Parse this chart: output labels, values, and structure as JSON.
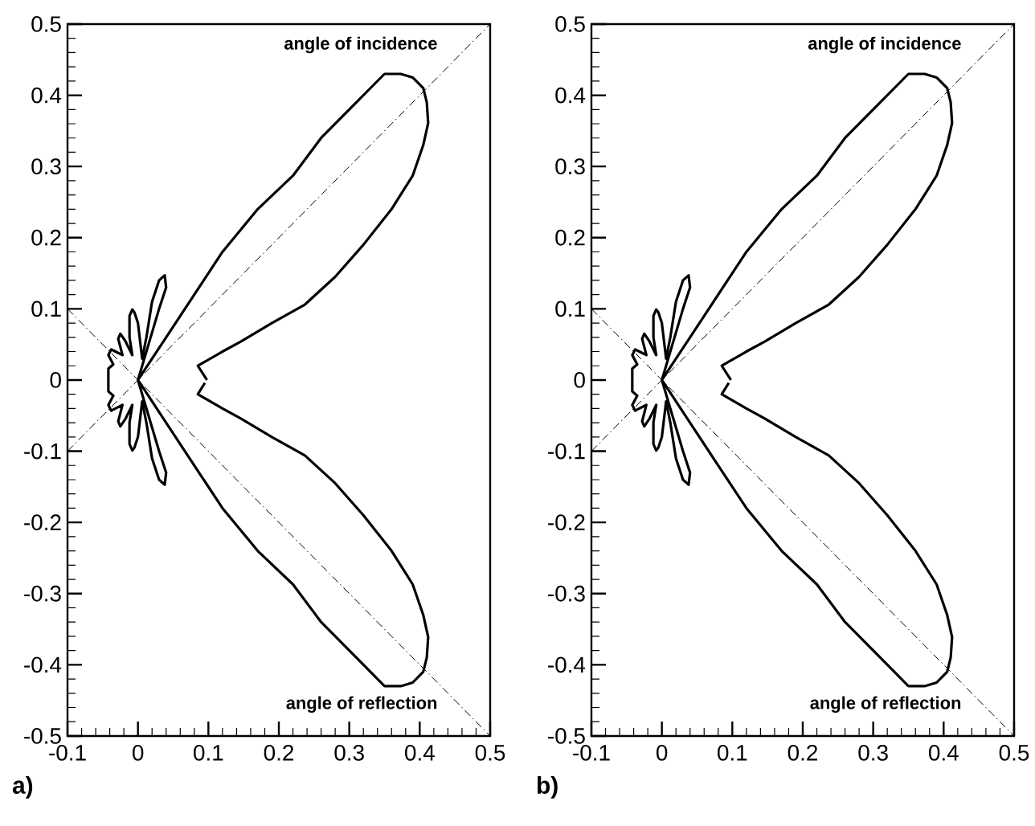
{
  "chart_data": [
    {
      "type": "line",
      "xlim": [
        -0.1,
        0.5
      ],
      "ylim": [
        -0.5,
        0.5
      ],
      "xticks": [
        -0.1,
        0,
        0.1,
        0.2,
        0.3,
        0.4,
        0.5
      ],
      "yticks": [
        -0.5,
        -0.4,
        -0.3,
        -0.2,
        -0.1,
        0,
        0.1,
        0.2,
        0.3,
        0.4,
        0.5
      ],
      "series": [
        {
          "color": "#000000",
          "line_style": "solid",
          "x": [
            0.098,
            0.085,
            0.12,
            0.146,
            0.19,
            0.237,
            0.28,
            0.32,
            0.36,
            0.39,
            0.405,
            0.412,
            0.41,
            0.405,
            0.39,
            0.373,
            0.35,
            0.33,
            0.31,
            0.26,
            0.22,
            0.17,
            0.12,
            0.08,
            0.04,
            0.01,
            0,
            0.015,
            0.03,
            0.04,
            0.038,
            0.03,
            0.02,
            0.012,
            0.006,
            0,
            -0.005,
            -0.008,
            -0.012,
            -0.012,
            -0.008,
            -0.018,
            -0.025,
            -0.028,
            -0.022,
            -0.032,
            -0.038,
            -0.042,
            -0.035,
            -0.042,
            -0.042,
            -0.035,
            -0.042,
            -0.038,
            -0.032,
            -0.022,
            -0.028,
            -0.025,
            -0.018,
            -0.008,
            -0.012,
            -0.012,
            -0.008,
            -0.005,
            0,
            0.006,
            0.012,
            0.02,
            0.03,
            0.038,
            0.04,
            0.03,
            0.015,
            0,
            0.01,
            0.04,
            0.08,
            0.12,
            0.17,
            0.22,
            0.26,
            0.31,
            0.33,
            0.35,
            0.373,
            0.39,
            0.405,
            0.41,
            0.412,
            0.405,
            0.39,
            0.36,
            0.32,
            0.28,
            0.237,
            0.19,
            0.146,
            0.12,
            0.085,
            0.095
          ],
          "values": [
            0,
            0.02,
            0.04,
            0.054,
            0.08,
            0.106,
            0.145,
            0.19,
            0.24,
            0.287,
            0.33,
            0.361,
            0.39,
            0.41,
            0.425,
            0.43,
            0.43,
            0.41,
            0.39,
            0.34,
            0.287,
            0.24,
            0.18,
            0.12,
            0.06,
            0.015,
            0,
            0.05,
            0.1,
            0.13,
            0.147,
            0.14,
            0.11,
            0.06,
            0.03,
            0.08,
            0.095,
            0.099,
            0.09,
            0.06,
            0.035,
            0.055,
            0.065,
            0.058,
            0.035,
            0.04,
            0.043,
            0.035,
            0.022,
            0.016,
            -0.016,
            -0.022,
            -0.035,
            -0.043,
            -0.04,
            -0.035,
            -0.058,
            -0.065,
            -0.055,
            -0.035,
            -0.06,
            -0.09,
            -0.099,
            -0.095,
            -0.08,
            -0.03,
            -0.06,
            -0.11,
            -0.14,
            -0.147,
            -0.13,
            -0.1,
            -0.05,
            0,
            -0.015,
            -0.06,
            -0.12,
            -0.18,
            -0.24,
            -0.287,
            -0.34,
            -0.39,
            -0.41,
            -0.43,
            -0.43,
            -0.425,
            -0.41,
            -0.39,
            -0.361,
            -0.33,
            -0.287,
            -0.24,
            -0.19,
            -0.145,
            -0.106,
            -0.08,
            -0.054,
            -0.04,
            -0.02,
            -0.004
          ]
        },
        {
          "color": "#000000",
          "line_style": "dashdot",
          "x": [
            -0.1,
            0.5
          ],
          "values": [
            -0.1,
            0.5
          ]
        },
        {
          "color": "#000000",
          "line_style": "dashdot",
          "x": [
            -0.1,
            0.5
          ],
          "values": [
            0.1,
            -0.5
          ]
        }
      ],
      "annotations": [
        "angle of incidence",
        "angle of reflection",
        "a)"
      ]
    },
    {
      "type": "line",
      "xlim": [
        -0.1,
        0.5
      ],
      "ylim": [
        -0.5,
        0.5
      ],
      "xticks": [
        -0.1,
        0,
        0.1,
        0.2,
        0.3,
        0.4,
        0.5
      ],
      "yticks": [
        -0.5,
        -0.4,
        -0.3,
        -0.2,
        -0.1,
        0,
        0.1,
        0.2,
        0.3,
        0.4,
        0.5
      ],
      "series": [
        {
          "color": "#000000",
          "line_style": "solid",
          "x": [
            0.098,
            0.085,
            0.12,
            0.146,
            0.19,
            0.237,
            0.28,
            0.32,
            0.36,
            0.39,
            0.405,
            0.412,
            0.41,
            0.405,
            0.39,
            0.373,
            0.35,
            0.33,
            0.31,
            0.26,
            0.22,
            0.17,
            0.12,
            0.08,
            0.04,
            0.01,
            0,
            0.015,
            0.03,
            0.04,
            0.038,
            0.03,
            0.02,
            0.012,
            0.006,
            0,
            -0.005,
            -0.008,
            -0.012,
            -0.012,
            -0.008,
            -0.018,
            -0.025,
            -0.028,
            -0.022,
            -0.032,
            -0.038,
            -0.042,
            -0.035,
            -0.042,
            -0.042,
            -0.035,
            -0.042,
            -0.038,
            -0.032,
            -0.022,
            -0.028,
            -0.025,
            -0.018,
            -0.008,
            -0.012,
            -0.012,
            -0.008,
            -0.005,
            0,
            0.006,
            0.012,
            0.02,
            0.03,
            0.038,
            0.04,
            0.03,
            0.015,
            0,
            0.01,
            0.04,
            0.08,
            0.12,
            0.17,
            0.22,
            0.26,
            0.31,
            0.33,
            0.35,
            0.373,
            0.39,
            0.405,
            0.41,
            0.412,
            0.405,
            0.39,
            0.36,
            0.32,
            0.28,
            0.237,
            0.19,
            0.146,
            0.12,
            0.085,
            0.095
          ],
          "values": [
            0,
            0.02,
            0.04,
            0.054,
            0.08,
            0.106,
            0.145,
            0.19,
            0.24,
            0.287,
            0.33,
            0.361,
            0.39,
            0.41,
            0.425,
            0.43,
            0.43,
            0.41,
            0.39,
            0.34,
            0.287,
            0.24,
            0.18,
            0.12,
            0.06,
            0.015,
            0,
            0.05,
            0.1,
            0.13,
            0.147,
            0.14,
            0.11,
            0.06,
            0.03,
            0.08,
            0.095,
            0.099,
            0.09,
            0.06,
            0.035,
            0.055,
            0.065,
            0.058,
            0.035,
            0.04,
            0.043,
            0.035,
            0.022,
            0.016,
            -0.016,
            -0.022,
            -0.035,
            -0.043,
            -0.04,
            -0.035,
            -0.058,
            -0.065,
            -0.055,
            -0.035,
            -0.06,
            -0.09,
            -0.099,
            -0.095,
            -0.08,
            -0.03,
            -0.06,
            -0.11,
            -0.14,
            -0.147,
            -0.13,
            -0.1,
            -0.05,
            0,
            -0.015,
            -0.06,
            -0.12,
            -0.18,
            -0.24,
            -0.287,
            -0.34,
            -0.39,
            -0.41,
            -0.43,
            -0.43,
            -0.425,
            -0.41,
            -0.39,
            -0.361,
            -0.33,
            -0.287,
            -0.24,
            -0.19,
            -0.145,
            -0.106,
            -0.08,
            -0.054,
            -0.04,
            -0.02,
            -0.004
          ]
        },
        {
          "color": "#000000",
          "line_style": "dashdot",
          "x": [
            -0.1,
            0.5
          ],
          "values": [
            -0.1,
            0.5
          ]
        },
        {
          "color": "#000000",
          "line_style": "dashdot",
          "x": [
            -0.1,
            0.5
          ],
          "values": [
            0.1,
            -0.5
          ]
        }
      ],
      "annotations": [
        "angle of incidence",
        "angle of reflection",
        "b)"
      ]
    }
  ]
}
